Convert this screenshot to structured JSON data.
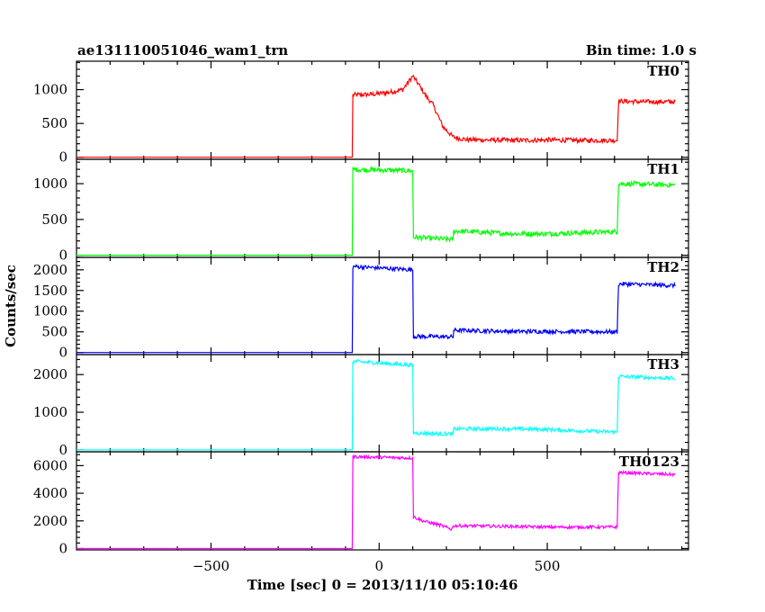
{
  "header": {
    "title": "ae131110051046_wam1_trn",
    "bin_time": "Bin time: 1.0 s"
  },
  "chart_data": {
    "type": "line",
    "xlabel": "Time [sec] 0 = 2013/11/10 05:10:46",
    "ylabel": "Counts/sec",
    "xlim": [
      -900,
      920
    ],
    "x_ticks": [
      -500,
      0,
      500
    ],
    "x_tick_labels": [
      "−500",
      "0",
      "500"
    ],
    "panels": [
      {
        "name": "TH0",
        "color": "#ff0000",
        "ylim": [
          -30,
          1420
        ],
        "y_ticks": [
          0,
          500,
          1000
        ],
        "y_tick_labels": [
          "0",
          "500",
          "1000"
        ],
        "x": [
          -900,
          -80,
          -78,
          -20,
          30,
          70,
          100,
          120,
          140,
          160,
          190,
          220,
          260,
          400,
          500,
          600,
          708,
          712,
          780,
          880
        ],
        "y": [
          0,
          0,
          920,
          930,
          960,
          1000,
          1200,
          1060,
          900,
          780,
          450,
          300,
          260,
          250,
          255,
          250,
          250,
          830,
          820,
          820
        ],
        "noise": 35
      },
      {
        "name": "TH1",
        "color": "#00ff00",
        "ylim": [
          -30,
          1340
        ],
        "y_ticks": [
          0,
          500,
          1000
        ],
        "y_tick_labels": [
          "0",
          "500",
          "1000"
        ],
        "x": [
          -900,
          -80,
          -78,
          100,
          102,
          220,
          222,
          400,
          500,
          708,
          712,
          880
        ],
        "y": [
          0,
          0,
          1200,
          1180,
          250,
          220,
          340,
          300,
          300,
          330,
          1000,
          980
        ],
        "noise": 35
      },
      {
        "name": "TH2",
        "color": "#0000ff",
        "ylim": [
          -50,
          2300
        ],
        "y_ticks": [
          0,
          500,
          1000,
          1500,
          2000
        ],
        "y_tick_labels": [
          "0",
          "500",
          "1000",
          "1500",
          "2000"
        ],
        "x": [
          -900,
          -80,
          -78,
          100,
          102,
          220,
          222,
          400,
          500,
          708,
          712,
          880
        ],
        "y": [
          0,
          0,
          2080,
          2000,
          390,
          380,
          540,
          510,
          510,
          500,
          1660,
          1620
        ],
        "noise": 50
      },
      {
        "name": "TH3",
        "color": "#00ffff",
        "ylim": [
          -50,
          2530
        ],
        "y_ticks": [
          0,
          1000,
          2000
        ],
        "y_tick_labels": [
          "0",
          "1000",
          "2000"
        ],
        "x": [
          -900,
          -80,
          -78,
          100,
          102,
          220,
          222,
          400,
          500,
          708,
          712,
          880
        ],
        "y": [
          0,
          0,
          2350,
          2250,
          450,
          420,
          560,
          560,
          540,
          470,
          1950,
          1900
        ],
        "noise": 50
      },
      {
        "name": "TH0123",
        "color": "#ff00ff",
        "ylim": [
          -100,
          7000
        ],
        "y_ticks": [
          0,
          2000,
          4000,
          6000
        ],
        "y_tick_labels": [
          "0",
          "2000",
          "4000",
          "6000"
        ],
        "x": [
          -900,
          -80,
          -78,
          100,
          102,
          130,
          180,
          215,
          222,
          400,
          500,
          708,
          712,
          880
        ],
        "y": [
          0,
          0,
          6650,
          6550,
          2300,
          2000,
          1700,
          1400,
          1650,
          1600,
          1550,
          1550,
          5500,
          5350
        ],
        "noise": 110
      }
    ]
  }
}
